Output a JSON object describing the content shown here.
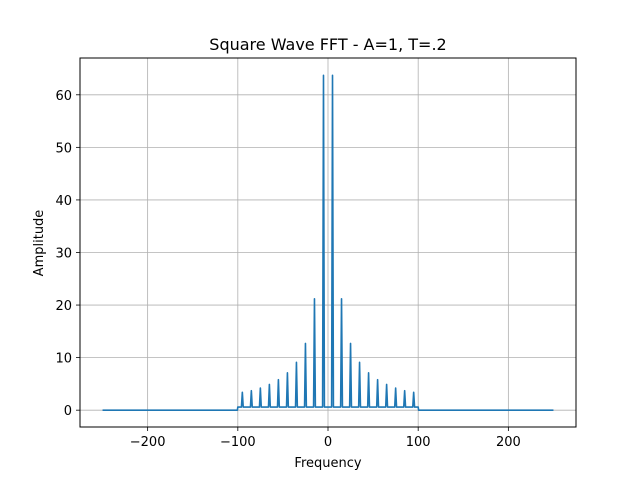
{
  "chart_data": {
    "type": "line",
    "title": "Square Wave FFT - A=1, T=.2",
    "xlabel": "Frequency",
    "ylabel": "Amplitude",
    "xlim": [
      -275,
      275
    ],
    "ylim": [
      -3.2,
      67
    ],
    "xticks": [
      -200,
      -100,
      0,
      100,
      200
    ],
    "yticks": [
      0,
      10,
      20,
      30,
      40,
      50,
      60
    ],
    "xtick_labels": [
      "−200",
      "−100",
      "0",
      "100",
      "200"
    ],
    "ytick_labels": [
      "0",
      "10",
      "20",
      "30",
      "40",
      "50",
      "60"
    ],
    "grid": true,
    "x_range": [
      -250,
      250
    ],
    "floor": {
      "outside": 0.0,
      "inside": 0.6,
      "inside_range": [
        -100,
        100
      ]
    },
    "peak_frequencies": [
      -95,
      -85,
      -75,
      -65,
      -55,
      -45,
      -35,
      -25,
      -15,
      -5,
      5,
      15,
      25,
      35,
      45,
      55,
      65,
      75,
      85,
      95
    ],
    "peak_amplitudes": [
      3.4,
      3.7,
      4.2,
      4.9,
      5.8,
      7.1,
      9.1,
      12.7,
      21.2,
      63.7,
      63.7,
      21.2,
      12.7,
      9.1,
      7.1,
      5.8,
      4.9,
      4.2,
      3.7,
      3.4
    ],
    "series_color": "#1f77b4",
    "grid_color": "#b0b0b0"
  }
}
